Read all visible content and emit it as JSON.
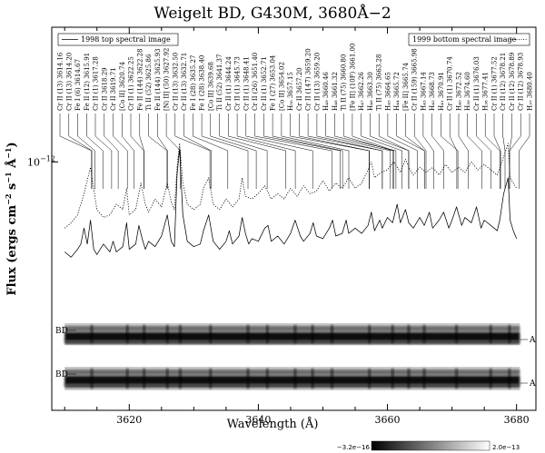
{
  "chart_data": {
    "type": "line",
    "title": "Weigelt BD, G430M, 3680Å−2",
    "xlabel": "Wavelength (Å)",
    "ylabel": "Flux (ergs cm⁻² s⁻¹ Å⁻¹)",
    "ylabel_parts": {
      "prefix": "Flux (ergs cm",
      "exp1": "−2",
      "mid1": " s",
      "exp2": "−1",
      "mid2": " Å",
      "exp3": "−1",
      "suffix": ")"
    },
    "xlim": [
      3608,
      3683
    ],
    "ylim_log": [
      -12.52,
      -11.8
    ],
    "y_scale": "log",
    "x_ticks": [
      3620,
      3640,
      3660,
      3680
    ],
    "x_tick_labels": [
      "3620",
      "3640",
      "3660",
      "3680"
    ],
    "y_tick_label": "10",
    "y_tick_exp": "−12",
    "y_tick_value": -12,
    "legend_left": "1998 top spectral image",
    "legend_right": "1999 bottom spectral image",
    "series": [
      {
        "name": "1998 top spectral image",
        "style": "solid",
        "x": [
          3610,
          3611,
          3612,
          3612.5,
          3613,
          3613.5,
          3614,
          3614.5,
          3615,
          3616,
          3617,
          3617.5,
          3618,
          3619,
          3619.6,
          3620,
          3621,
          3621.5,
          3622,
          3622.5,
          3623,
          3624,
          3625,
          3625.9,
          3626.5,
          3627,
          3627.4,
          3627.8,
          3628.3,
          3629,
          3630,
          3631,
          3631.5,
          3632.3,
          3633,
          3634,
          3635,
          3635.5,
          3636,
          3637,
          3637.5,
          3638,
          3638.5,
          3639,
          3640,
          3641,
          3641.5,
          3642,
          3643,
          3644,
          3645,
          3645.7,
          3646.5,
          3647,
          3648,
          3648.5,
          3649,
          3650,
          3651,
          3651.5,
          3652,
          3653,
          3653.6,
          3654,
          3655,
          3656,
          3657,
          3657.5,
          3658,
          3658.8,
          3659.2,
          3660,
          3660.8,
          3661.5,
          3662,
          3662.8,
          3663.3,
          3664,
          3665,
          3665.7,
          3666.5,
          3667,
          3668,
          3668.7,
          3669.5,
          3670,
          3670.7,
          3671.5,
          3672,
          3673,
          3673.8,
          3674.5,
          3675,
          3676,
          3677,
          3677.4,
          3678,
          3678.7,
          3679,
          3679.5,
          3680
        ],
        "y": [
          -12.34,
          -12.36,
          -12.33,
          -12.31,
          -12.25,
          -12.31,
          -12.22,
          -12.33,
          -12.35,
          -12.31,
          -12.34,
          -12.3,
          -12.34,
          -12.32,
          -12.23,
          -12.33,
          -12.31,
          -12.24,
          -12.29,
          -12.33,
          -12.3,
          -12.32,
          -12.28,
          -12.2,
          -12.3,
          -12.32,
          -12.05,
          -11.95,
          -12.2,
          -12.3,
          -12.32,
          -12.31,
          -12.26,
          -12.2,
          -12.3,
          -12.33,
          -12.3,
          -12.26,
          -12.31,
          -12.28,
          -12.21,
          -12.27,
          -12.31,
          -12.29,
          -12.3,
          -12.25,
          -12.24,
          -12.3,
          -12.28,
          -12.31,
          -12.27,
          -12.22,
          -12.28,
          -12.3,
          -12.27,
          -12.23,
          -12.28,
          -12.29,
          -12.25,
          -12.22,
          -12.28,
          -12.27,
          -12.22,
          -12.27,
          -12.25,
          -12.27,
          -12.24,
          -12.19,
          -12.26,
          -12.22,
          -12.25,
          -12.21,
          -12.23,
          -12.16,
          -12.23,
          -12.18,
          -12.23,
          -12.25,
          -12.21,
          -12.24,
          -12.19,
          -12.25,
          -12.22,
          -12.19,
          -12.25,
          -12.22,
          -12.17,
          -12.24,
          -12.21,
          -12.23,
          -12.17,
          -12.25,
          -12.22,
          -12.24,
          -12.26,
          -12.22,
          -12.12,
          -12.06,
          -12.22,
          -12.26,
          -12.29
        ]
      },
      {
        "name": "1999 bottom spectral image",
        "style": "dotted",
        "x": [
          3610,
          3611,
          3612,
          3613,
          3614,
          3615,
          3616,
          3617,
          3618,
          3619,
          3619.6,
          3620,
          3621,
          3621.8,
          3622.5,
          3623,
          3624,
          3625,
          3625.9,
          3626.5,
          3627,
          3627.4,
          3627.8,
          3628.3,
          3629,
          3630,
          3631,
          3631.5,
          3632.3,
          3633,
          3634,
          3635,
          3636,
          3637,
          3637.5,
          3638,
          3639,
          3640,
          3641,
          3642,
          3643,
          3644,
          3645,
          3646,
          3647,
          3648,
          3649,
          3650,
          3651,
          3652,
          3653,
          3654,
          3655,
          3656,
          3657,
          3657.5,
          3658,
          3659,
          3660,
          3661,
          3662,
          3662.8,
          3663.5,
          3664,
          3665,
          3666,
          3667,
          3668,
          3669,
          3670,
          3671,
          3672,
          3673,
          3674,
          3675,
          3676,
          3677,
          3678,
          3678.7,
          3679,
          3680
        ],
        "y": [
          -12.25,
          -12.23,
          -12.2,
          -12.12,
          -12.02,
          -12.18,
          -12.21,
          -12.2,
          -12.16,
          -12.18,
          -12.1,
          -12.2,
          -12.18,
          -12.08,
          -12.16,
          -12.19,
          -12.14,
          -12.17,
          -12.08,
          -12.15,
          -12.18,
          -12.02,
          -11.93,
          -12.08,
          -12.16,
          -12.18,
          -12.16,
          -12.1,
          -12.06,
          -12.16,
          -12.18,
          -12.14,
          -12.17,
          -12.14,
          -12.06,
          -12.13,
          -12.14,
          -12.12,
          -12.09,
          -12.14,
          -12.12,
          -12.14,
          -12.1,
          -12.13,
          -12.09,
          -12.12,
          -12.11,
          -12.07,
          -12.11,
          -12.08,
          -12.1,
          -12.06,
          -12.1,
          -12.08,
          -12.03,
          -12.0,
          -12.06,
          -12.04,
          -12.03,
          -12.0,
          -12.04,
          -11.99,
          -12.03,
          -12.05,
          -12.02,
          -12.04,
          -12.02,
          -12.05,
          -12.01,
          -12.04,
          -12.02,
          -12.04,
          -12.0,
          -12.03,
          -12.01,
          -12.03,
          -12.05,
          -11.98,
          -11.93,
          -12.06,
          -12.1
        ]
      }
    ],
    "line_ids": [
      {
        "label": "Cr II (13) 3614.16",
        "wl": 3614.16
      },
      {
        "label": "Cr II (13) 3614.20",
        "wl": 3614.2
      },
      {
        "label": "Fe I (6) 3614.67",
        "wl": 3614.67
      },
      {
        "label": "Fe II (12) 3615.91",
        "wl": 3615.91
      },
      {
        "label": "Cr II (1) 3617.28",
        "wl": 3617.28
      },
      {
        "label": "Cr II 3618.29",
        "wl": 3618.29
      },
      {
        "label": "Cr II 3619.71",
        "wl": 3619.71
      },
      {
        "label": "[Co II] 3620.74",
        "wl": 3620.74
      },
      {
        "label": "Cr II (1) 3622.25",
        "wl": 3622.25
      },
      {
        "label": "Fe II (144) 3622.28",
        "wl": 3622.28
      },
      {
        "label": "Ti II (52) 3625.86",
        "wl": 3625.86
      },
      {
        "label": "Fe II (144) 3625.93",
        "wl": 3625.93
      },
      {
        "label": "[Ni II] (50) 3627.92",
        "wl": 3627.92
      },
      {
        "label": "Cr II (13) 3632.50",
        "wl": 3632.5
      },
      {
        "label": "Cr II (13) 3632.71",
        "wl": 3632.71
      },
      {
        "label": "Fe I (28) 3635.27",
        "wl": 3635.27
      },
      {
        "label": "Fe I (28) 3638.40",
        "wl": 3638.4
      },
      {
        "label": "[Co II] 3639.68",
        "wl": 3639.68
      },
      {
        "label": "Ti II (52) 3641.37",
        "wl": 3641.37
      },
      {
        "label": "Cr II (1) 3644.24",
        "wl": 3644.24
      },
      {
        "label": "Cr II (1) 3645.73",
        "wl": 3645.73
      },
      {
        "label": "Cr II (1) 3648.41",
        "wl": 3648.41
      },
      {
        "label": "Cr II (26) 3651.40",
        "wl": 3651.4
      },
      {
        "label": "Cr II (1) 3652.71",
        "wl": 3652.71
      },
      {
        "label": "Fe I (27) 3653.04",
        "wl": 3653.04
      },
      {
        "label": "[Co II] 3654.02",
        "wl": 3654.02
      },
      {
        "label": "H₅₀ 3657.15",
        "wl": 3657.15
      },
      {
        "label": "Cr II 3657.20",
        "wl": 3657.2
      },
      {
        "label": "Cr II (147) 3659.20",
        "wl": 3659.2
      },
      {
        "label": "Cr II (13) 3659.20",
        "wl": 3659.2
      },
      {
        "label": "H₄₉ 3660.46",
        "wl": 3660.46
      },
      {
        "label": "H₄₈ 3661.32",
        "wl": 3661.32
      },
      {
        "label": "Ti II (75) 3660.80",
        "wl": 3660.8
      },
      {
        "label": "[Fe II] (10F) 3661.00",
        "wl": 3661.0
      },
      {
        "label": "H₄₇ 3662.26",
        "wl": 3662.26
      },
      {
        "label": "H₄₆ 3663.30",
        "wl": 3663.3
      },
      {
        "label": "Ti II (75) 3663.28",
        "wl": 3663.28
      },
      {
        "label": "H₄₅ 3664.65",
        "wl": 3664.65
      },
      {
        "label": "H₄₄ 3665.72",
        "wl": 3665.72
      },
      {
        "label": "[Fe II] 3665.74",
        "wl": 3665.74
      },
      {
        "label": "Cr II (159) 3665.98",
        "wl": 3665.98
      },
      {
        "label": "H₄₃ 3667.14",
        "wl": 3667.14
      },
      {
        "label": "H₄₂ 3668.73",
        "wl": 3668.73
      },
      {
        "label": "H₄₁ 3670.91",
        "wl": 3670.91
      },
      {
        "label": "Cr II (1) 3670.74",
        "wl": 3670.74
      },
      {
        "label": "H₄₀ 3672.52",
        "wl": 3672.52
      },
      {
        "label": "H₃₉ 3674.60",
        "wl": 3674.6
      },
      {
        "label": "Cr II (1) 3676.03",
        "wl": 3676.03
      },
      {
        "label": "H₃₈ 3677.41",
        "wl": 3677.41
      },
      {
        "label": "Cr II (1) 3677.52",
        "wl": 3677.52
      },
      {
        "label": "Cr II (12) 3678.21",
        "wl": 3678.21
      },
      {
        "label": "Cr II (12) 3678.89",
        "wl": 3678.89
      },
      {
        "label": "Cr II (12) 3678.93",
        "wl": 3678.93
      },
      {
        "label": "H₃₇ 3680.40",
        "wl": 3680.4
      }
    ],
    "spectral_strips": [
      {
        "left_label": "BD",
        "right_label": "A"
      },
      {
        "left_label": "BD",
        "right_label": "A"
      }
    ],
    "strip_emission_wl": [
      3614.2,
      3619.7,
      3622.3,
      3625.9,
      3627.9,
      3632.6,
      3638.4,
      3641.4,
      3645.7,
      3648.4,
      3651.4,
      3657.2,
      3660.8,
      3663.3,
      3665.7,
      3670.7,
      3676.0,
      3678.9
    ],
    "colorbar": {
      "min_label": "−3.2e−16",
      "max_label": "2.0e−13"
    }
  }
}
